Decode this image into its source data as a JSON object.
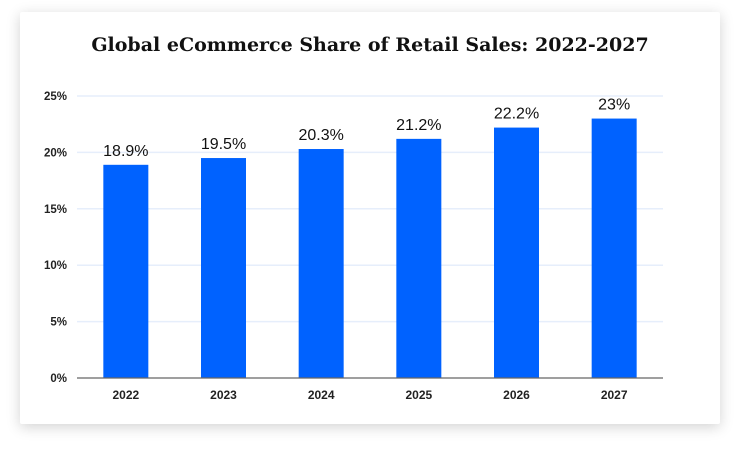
{
  "chart_data": {
    "type": "bar",
    "title": "Global eCommerce Share of Retail Sales: 2022-2027",
    "xlabel": "",
    "ylabel": "",
    "categories": [
      "2022",
      "2023",
      "2024",
      "2025",
      "2026",
      "2027"
    ],
    "values": [
      18.9,
      19.5,
      20.3,
      21.2,
      22.2,
      23
    ],
    "data_labels": [
      "18.9%",
      "19.5%",
      "20.3%",
      "21.2%",
      "22.2%",
      "23%"
    ],
    "ylim": [
      0,
      25
    ],
    "yticks": [
      0,
      5,
      10,
      15,
      20,
      25
    ],
    "ytick_labels": [
      "0%",
      "5%",
      "10%",
      "15%",
      "20%",
      "25%"
    ],
    "grid": true,
    "bar_color": "#0062FF",
    "grid_color": "#E6EEFB"
  }
}
